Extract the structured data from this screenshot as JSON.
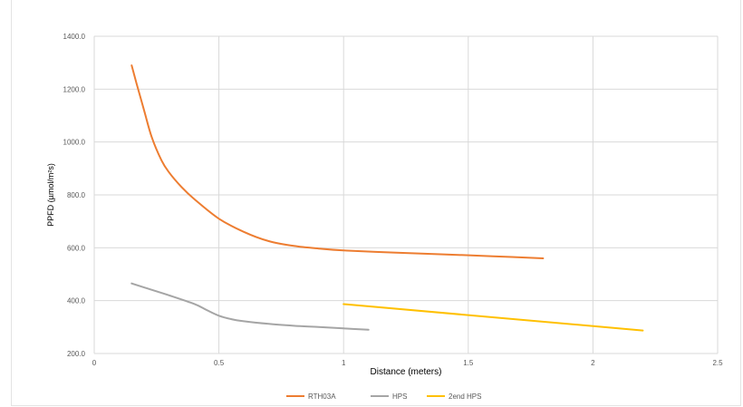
{
  "chart_data": {
    "type": "line",
    "title": "",
    "xlabel": "Distance (meters)",
    "ylabel": "PPFD (µmol/m²s)",
    "xlim": [
      0,
      2.5
    ],
    "ylim": [
      200,
      1400
    ],
    "x_ticks": [
      0,
      0.5,
      1,
      1.5,
      2,
      2.5
    ],
    "x_tick_labels": [
      "0",
      "0.5",
      "1",
      "1.5",
      "2",
      "2.5"
    ],
    "y_ticks": [
      200,
      400,
      600,
      800,
      1000,
      1200,
      1400
    ],
    "y_tick_labels": [
      "200.0",
      "400.0",
      "600.0",
      "800.0",
      "1000.0",
      "1200.0",
      "1400.0"
    ],
    "grid": "vertical",
    "legend_position": "bottom",
    "series": [
      {
        "name": "RTH03A",
        "color": "#ED7D31",
        "x": [
          0.15,
          0.17,
          0.2,
          0.23,
          0.27,
          0.3,
          0.35,
          0.4,
          0.5,
          0.6,
          0.7,
          0.8,
          0.9,
          1.0,
          1.2,
          1.4,
          1.6,
          1.8
        ],
        "y": [
          1290,
          1220,
          1120,
          1020,
          930,
          885,
          830,
          785,
          710,
          660,
          625,
          607,
          597,
          590,
          582,
          575,
          568,
          560
        ]
      },
      {
        "name": "HPS",
        "color": "#A5A5A5",
        "x": [
          0.15,
          0.2,
          0.3,
          0.4,
          0.45,
          0.5,
          0.55,
          0.6,
          0.7,
          0.8,
          0.9,
          1.0,
          1.1
        ],
        "y": [
          465,
          450,
          420,
          388,
          365,
          343,
          330,
          322,
          312,
          305,
          300,
          295,
          290
        ]
      },
      {
        "name": "2end HPS",
        "color": "#FFC000",
        "x": [
          1.0,
          2.2
        ],
        "y": [
          387,
          287
        ]
      }
    ]
  }
}
